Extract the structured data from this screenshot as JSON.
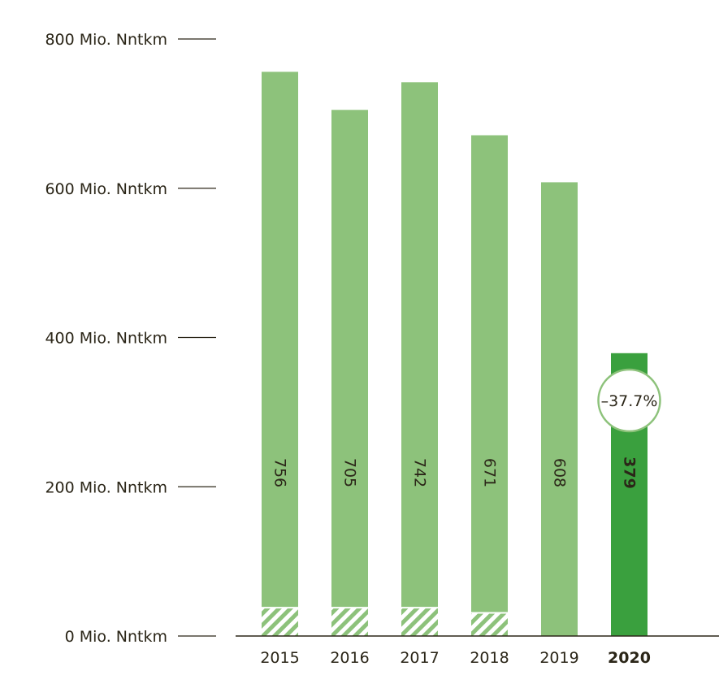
{
  "chart_data": {
    "type": "bar",
    "categories": [
      "2015",
      "2016",
      "2017",
      "2018",
      "2019",
      "2020"
    ],
    "values": [
      756,
      705,
      742,
      671,
      608,
      379
    ],
    "value_labels": [
      "756",
      "705",
      "742",
      "671",
      "608",
      "379"
    ],
    "hatched_base_values": [
      38,
      38,
      38,
      31,
      0,
      0
    ],
    "ylim": [
      0,
      800
    ],
    "yticks": [
      0,
      200,
      400,
      600,
      800
    ],
    "ytick_labels": [
      "0 Mio. Nntkm",
      "200 Mio. Nntkm",
      "400 Mio. Nntkm",
      "600 Mio. Nntkm",
      "800 Mio. Nntkm"
    ],
    "highlight_category": "2020",
    "change_badge": "–37.7%",
    "legend": "none",
    "grid": false,
    "colors": {
      "bar": "#8dc27b",
      "highlight": "#3aa03e",
      "hatch": "#8dc27b",
      "axis": "#2b2618",
      "badge_border": "#8dc27b"
    }
  }
}
